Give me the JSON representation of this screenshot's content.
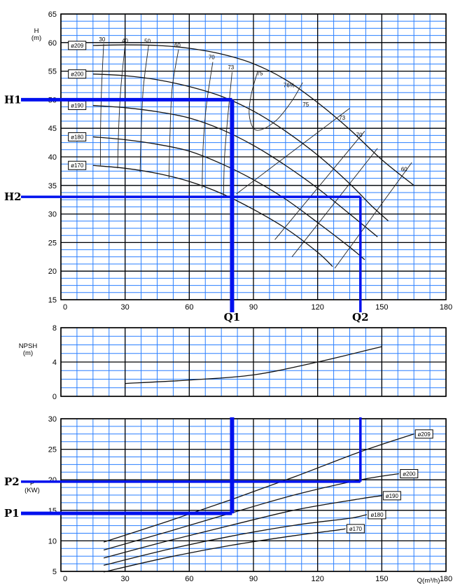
{
  "chart_data": [
    {
      "type": "line",
      "panel": "head",
      "ylabel": "H\n(m)",
      "xlim": [
        0,
        180
      ],
      "ylim": [
        15,
        65
      ],
      "x_ticks": [
        "0",
        "30",
        "60",
        "90",
        "120",
        "150",
        "180"
      ],
      "y_ticks": [
        "15",
        "20",
        "25",
        "30",
        "35",
        "40",
        "45",
        "50",
        "55",
        "60",
        "65"
      ],
      "series": [
        {
          "name": "ø209",
          "points": [
            [
              15,
              59.5
            ],
            [
              30,
              59.6
            ],
            [
              45,
              59.5
            ],
            [
              60,
              59.0
            ],
            [
              75,
              58.0
            ],
            [
              90,
              56.3
            ],
            [
              105,
              53.5
            ],
            [
              120,
              49.5
            ],
            [
              135,
              44.8
            ],
            [
              150,
              39.5
            ],
            [
              165,
              35.0
            ]
          ]
        },
        {
          "name": "ø200",
          "points": [
            [
              15,
              54.5
            ],
            [
              30,
              54.2
            ],
            [
              45,
              53.5
            ],
            [
              60,
              52.3
            ],
            [
              75,
              50.6
            ],
            [
              90,
              48.0
            ],
            [
              105,
              44.5
            ],
            [
              120,
              40.3
            ],
            [
              135,
              35.3
            ],
            [
              145,
              31.5
            ],
            [
              153,
              28.8
            ]
          ]
        },
        {
          "name": "ø190",
          "points": [
            [
              15,
              49.0
            ],
            [
              30,
              48.6
            ],
            [
              45,
              47.9
            ],
            [
              60,
              46.8
            ],
            [
              75,
              44.8
            ],
            [
              90,
              42.0
            ],
            [
              105,
              38.5
            ],
            [
              120,
              34.5
            ],
            [
              135,
              30.0
            ],
            [
              148,
              26.0
            ]
          ]
        },
        {
          "name": "ø180",
          "points": [
            [
              15,
              43.5
            ],
            [
              30,
              43.0
            ],
            [
              45,
              42.2
            ],
            [
              60,
              41.0
            ],
            [
              75,
              38.8
            ],
            [
              90,
              36.0
            ],
            [
              105,
              32.6
            ],
            [
              120,
              28.5
            ],
            [
              135,
              24.2
            ],
            [
              142,
              22.0
            ]
          ]
        },
        {
          "name": "ø170",
          "points": [
            [
              15,
              38.5
            ],
            [
              30,
              38.0
            ],
            [
              45,
              37.1
            ],
            [
              60,
              35.7
            ],
            [
              75,
              33.6
            ],
            [
              90,
              30.8
            ],
            [
              105,
              27.5
            ],
            [
              120,
              23.3
            ],
            [
              127,
              20.8
            ]
          ]
        }
      ],
      "efficiency_labels": [
        "30",
        "40",
        "50",
        "60",
        "70",
        "73",
        "75",
        "76%",
        "75",
        "73",
        "70",
        "60"
      ],
      "operating_points": [
        {
          "label": "H1",
          "head": 50,
          "flow": 80,
          "flow_label": "Q1"
        },
        {
          "label": "H2",
          "head": 33,
          "flow": 140,
          "flow_label": "Q2"
        }
      ]
    },
    {
      "type": "line",
      "panel": "npsh",
      "ylabel": "NPSH\n(m)",
      "xlim": [
        0,
        180
      ],
      "ylim": [
        0,
        8
      ],
      "y_ticks": [
        "0",
        "4",
        "8"
      ],
      "series": [
        {
          "name": "NPSH",
          "points": [
            [
              30,
              1.5
            ],
            [
              60,
              1.9
            ],
            [
              90,
              2.5
            ],
            [
              120,
              4.0
            ],
            [
              150,
              5.8
            ]
          ]
        }
      ]
    },
    {
      "type": "line",
      "panel": "power",
      "ylabel": "P\n(KW)",
      "xlabel": "Q(m³/h)",
      "xlim": [
        0,
        180
      ],
      "ylim": [
        5,
        30
      ],
      "x_ticks": [
        "0",
        "30",
        "60",
        "90",
        "120",
        "150",
        "180"
      ],
      "y_ticks": [
        "5",
        "10",
        "15",
        "20",
        "25",
        "30"
      ],
      "series": [
        {
          "name": "ø209",
          "points": [
            [
              20,
              9.8
            ],
            [
              50,
              13.2
            ],
            [
              80,
              16.8
            ],
            [
              110,
              20.6
            ],
            [
              140,
              24.6
            ],
            [
              165,
              27.5
            ]
          ]
        },
        {
          "name": "ø200",
          "points": [
            [
              20,
              8.5
            ],
            [
              50,
              11.5
            ],
            [
              80,
              14.6
            ],
            [
              110,
              17.6
            ],
            [
              140,
              20.0
            ],
            [
              158,
              21.0
            ]
          ]
        },
        {
          "name": "ø190",
          "points": [
            [
              20,
              7.2
            ],
            [
              50,
              10.0
            ],
            [
              80,
              12.6
            ],
            [
              110,
              15.1
            ],
            [
              140,
              16.9
            ],
            [
              150,
              17.4
            ]
          ]
        },
        {
          "name": "ø180",
          "points": [
            [
              20,
              6.0
            ],
            [
              50,
              8.6
            ],
            [
              80,
              10.8
            ],
            [
              110,
              12.6
            ],
            [
              135,
              13.7
            ],
            [
              143,
              14.3
            ]
          ]
        },
        {
          "name": "ø170",
          "points": [
            [
              20,
              4.9
            ],
            [
              50,
              7.3
            ],
            [
              80,
              9.3
            ],
            [
              110,
              10.9
            ],
            [
              130,
              11.8
            ],
            [
              133,
              12.0
            ]
          ]
        }
      ],
      "operating_points": [
        {
          "label": "P1",
          "power": 14.5,
          "flow": 80
        },
        {
          "label": "P2",
          "power": 19.7,
          "flow": 140
        }
      ]
    }
  ]
}
